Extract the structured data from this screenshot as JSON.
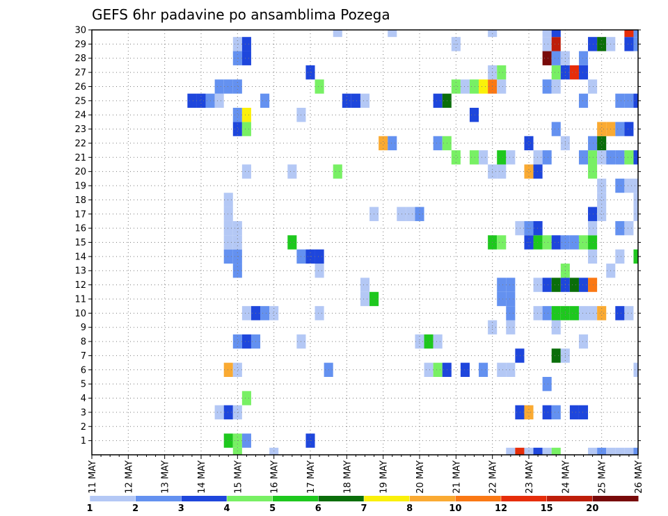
{
  "chart_data": {
    "type": "heatmap",
    "title": "GEFS 6hr padavine po ansamblima Pozega",
    "xlabel": "",
    "ylabel": "",
    "x_ticks": [
      "11 MAY",
      "12 MAY",
      "13 MAY",
      "14 MAY",
      "15 MAY",
      "16 MAY",
      "17 MAY",
      "18 MAY",
      "19 MAY",
      "20 MAY",
      "21 MAY",
      "22 MAY",
      "23 MAY",
      "24 MAY",
      "25 MAY",
      "26 MAY"
    ],
    "x_range": [
      11,
      26
    ],
    "y_ticks": [
      1,
      2,
      3,
      4,
      5,
      6,
      7,
      8,
      9,
      10,
      11,
      12,
      13,
      14,
      15,
      16,
      17,
      18,
      19,
      20,
      21,
      22,
      23,
      24,
      25,
      26,
      27,
      28,
      29,
      30
    ],
    "y_range": [
      0,
      30
    ],
    "grid": true,
    "colorbar": {
      "levels": [
        "1",
        "2",
        "3",
        "4",
        "5",
        "6",
        "7",
        "8",
        "10",
        "12",
        "15",
        "20"
      ],
      "colors": [
        "#b4c8f5",
        "#6491f0",
        "#1e46dc",
        "#78f064",
        "#1ec81e",
        "#0a6e0a",
        "#faf00a",
        "#faaa32",
        "#fa7814",
        "#e62d0a",
        "#be1e0a",
        "#780a0a"
      ]
    },
    "cells": [
      [
        14.75,
        1,
        "#1ec81e"
      ],
      [
        15.0,
        1,
        "#78f064"
      ],
      [
        15.25,
        1,
        "#6491f0"
      ],
      [
        17.0,
        1,
        "#1e46dc"
      ],
      [
        15.0,
        0,
        "#78f064"
      ],
      [
        16.0,
        0,
        "#b4c8f5"
      ],
      [
        22.5,
        0,
        "#b4c8f5"
      ],
      [
        22.75,
        0,
        "#e62d0a"
      ],
      [
        23.0,
        0,
        "#b4c8f5"
      ],
      [
        23.25,
        0,
        "#1e46dc"
      ],
      [
        23.5,
        0,
        "#b4c8f5"
      ],
      [
        23.75,
        0,
        "#78f064"
      ],
      [
        24.75,
        0,
        "#b4c8f5"
      ],
      [
        25.0,
        0,
        "#6491f0"
      ],
      [
        25.25,
        0,
        "#b4c8f5"
      ],
      [
        25.5,
        0,
        "#b4c8f5"
      ],
      [
        25.75,
        0,
        "#b4c8f5"
      ],
      [
        26.0,
        0,
        "#6491f0"
      ],
      [
        14.5,
        3,
        "#b4c8f5"
      ],
      [
        14.75,
        3,
        "#1e46dc"
      ],
      [
        15.0,
        3,
        "#b4c8f5"
      ],
      [
        22.75,
        3,
        "#1e46dc"
      ],
      [
        23.0,
        3,
        "#faaa32"
      ],
      [
        23.5,
        3,
        "#1e46dc"
      ],
      [
        23.75,
        3,
        "#6491f0"
      ],
      [
        24.25,
        3,
        "#1e46dc"
      ],
      [
        24.5,
        3,
        "#1e46dc"
      ],
      [
        15.25,
        4,
        "#78f064"
      ],
      [
        23.5,
        5,
        "#6491f0"
      ],
      [
        14.75,
        6,
        "#faaa32"
      ],
      [
        15.0,
        6,
        "#b4c8f5"
      ],
      [
        17.5,
        6,
        "#6491f0"
      ],
      [
        20.25,
        6,
        "#b4c8f5"
      ],
      [
        20.5,
        6,
        "#78f064"
      ],
      [
        20.75,
        6,
        "#1e46dc"
      ],
      [
        21.25,
        6,
        "#1e46dc"
      ],
      [
        21.75,
        6,
        "#6491f0"
      ],
      [
        22.25,
        6,
        "#b4c8f5"
      ],
      [
        22.5,
        6,
        "#b4c8f5"
      ],
      [
        26.0,
        6,
        "#b4c8f5"
      ],
      [
        22.75,
        7,
        "#1e46dc"
      ],
      [
        23.75,
        7,
        "#0a6e0a"
      ],
      [
        24.0,
        7,
        "#b4c8f5"
      ],
      [
        15.0,
        8,
        "#6491f0"
      ],
      [
        15.25,
        8,
        "#1e46dc"
      ],
      [
        15.5,
        8,
        "#6491f0"
      ],
      [
        16.75,
        8,
        "#b4c8f5"
      ],
      [
        20.0,
        8,
        "#b4c8f5"
      ],
      [
        20.25,
        8,
        "#1ec81e"
      ],
      [
        20.5,
        8,
        "#b4c8f5"
      ],
      [
        24.5,
        8,
        "#b4c8f5"
      ],
      [
        22.0,
        9,
        "#b4c8f5"
      ],
      [
        22.5,
        9,
        "#b4c8f5"
      ],
      [
        23.75,
        9,
        "#b4c8f5"
      ],
      [
        15.25,
        10,
        "#b4c8f5"
      ],
      [
        15.5,
        10,
        "#1e46dc"
      ],
      [
        15.75,
        10,
        "#6491f0"
      ],
      [
        16.0,
        10,
        "#b4c8f5"
      ],
      [
        17.25,
        10,
        "#b4c8f5"
      ],
      [
        22.5,
        10,
        "#6491f0"
      ],
      [
        23.25,
        10,
        "#b4c8f5"
      ],
      [
        23.5,
        10,
        "#6491f0"
      ],
      [
        23.75,
        10,
        "#1ec81e"
      ],
      [
        24.0,
        10,
        "#1ec81e"
      ],
      [
        24.25,
        10,
        "#1ec81e"
      ],
      [
        24.5,
        10,
        "#b4c8f5"
      ],
      [
        24.75,
        10,
        "#b4c8f5"
      ],
      [
        25.0,
        10,
        "#faaa32"
      ],
      [
        25.5,
        10,
        "#1e46dc"
      ],
      [
        25.75,
        10,
        "#b4c8f5"
      ],
      [
        18.5,
        11,
        "#b4c8f5"
      ],
      [
        18.75,
        11,
        "#1ec81e"
      ],
      [
        22.25,
        11,
        "#6491f0"
      ],
      [
        22.5,
        11,
        "#6491f0"
      ],
      [
        18.5,
        12,
        "#b4c8f5"
      ],
      [
        22.25,
        12,
        "#6491f0"
      ],
      [
        22.5,
        12,
        "#6491f0"
      ],
      [
        23.25,
        12,
        "#b4c8f5"
      ],
      [
        23.5,
        12,
        "#1e46dc"
      ],
      [
        23.75,
        12,
        "#0a6e0a"
      ],
      [
        24.0,
        12,
        "#1e46dc"
      ],
      [
        24.25,
        12,
        "#0a6e0a"
      ],
      [
        24.5,
        12,
        "#1e46dc"
      ],
      [
        24.75,
        12,
        "#fa7814"
      ],
      [
        15.0,
        13,
        "#6491f0"
      ],
      [
        17.25,
        13,
        "#b4c8f5"
      ],
      [
        24.0,
        13,
        "#78f064"
      ],
      [
        25.25,
        13,
        "#b4c8f5"
      ],
      [
        14.75,
        14,
        "#6491f0"
      ],
      [
        15.0,
        14,
        "#6491f0"
      ],
      [
        16.75,
        14,
        "#6491f0"
      ],
      [
        17.0,
        14,
        "#1e46dc"
      ],
      [
        17.25,
        14,
        "#1e46dc"
      ],
      [
        24.75,
        14,
        "#b4c8f5"
      ],
      [
        25.5,
        14,
        "#b4c8f5"
      ],
      [
        26.0,
        14,
        "#1ec81e"
      ],
      [
        14.75,
        15,
        "#b4c8f5"
      ],
      [
        15.0,
        15,
        "#b4c8f5"
      ],
      [
        16.5,
        15,
        "#1ec81e"
      ],
      [
        22.0,
        15,
        "#1ec81e"
      ],
      [
        22.25,
        15,
        "#78f064"
      ],
      [
        23.0,
        15,
        "#1e46dc"
      ],
      [
        23.25,
        15,
        "#1ec81e"
      ],
      [
        23.5,
        15,
        "#78f064"
      ],
      [
        23.75,
        15,
        "#1e46dc"
      ],
      [
        24.0,
        15,
        "#6491f0"
      ],
      [
        24.25,
        15,
        "#6491f0"
      ],
      [
        24.5,
        15,
        "#78f064"
      ],
      [
        24.75,
        15,
        "#1ec81e"
      ],
      [
        14.75,
        16,
        "#b4c8f5"
      ],
      [
        15.0,
        16,
        "#b4c8f5"
      ],
      [
        22.75,
        16,
        "#b4c8f5"
      ],
      [
        23.0,
        16,
        "#6491f0"
      ],
      [
        23.25,
        16,
        "#1e46dc"
      ],
      [
        24.75,
        16,
        "#b4c8f5"
      ],
      [
        25.5,
        16,
        "#6491f0"
      ],
      [
        25.75,
        16,
        "#b4c8f5"
      ],
      [
        14.75,
        17,
        "#b4c8f5"
      ],
      [
        18.75,
        17,
        "#b4c8f5"
      ],
      [
        19.5,
        17,
        "#b4c8f5"
      ],
      [
        19.75,
        17,
        "#b4c8f5"
      ],
      [
        20.0,
        17,
        "#6491f0"
      ],
      [
        24.75,
        17,
        "#1e46dc"
      ],
      [
        25.0,
        17,
        "#b4c8f5"
      ],
      [
        26.0,
        17,
        "#b4c8f5"
      ],
      [
        14.75,
        18,
        "#b4c8f5"
      ],
      [
        25.0,
        18,
        "#b4c8f5"
      ],
      [
        26.0,
        18,
        "#b4c8f5"
      ],
      [
        25.0,
        19,
        "#b4c8f5"
      ],
      [
        25.5,
        19,
        "#6491f0"
      ],
      [
        25.75,
        19,
        "#b4c8f5"
      ],
      [
        26.0,
        19,
        "#b4c8f5"
      ],
      [
        15.25,
        20,
        "#b4c8f5"
      ],
      [
        16.5,
        20,
        "#b4c8f5"
      ],
      [
        17.75,
        20,
        "#78f064"
      ],
      [
        22.0,
        20,
        "#b4c8f5"
      ],
      [
        22.25,
        20,
        "#b4c8f5"
      ],
      [
        23.0,
        20,
        "#faaa32"
      ],
      [
        23.25,
        20,
        "#1e46dc"
      ],
      [
        24.75,
        20,
        "#78f064"
      ],
      [
        21.0,
        21,
        "#78f064"
      ],
      [
        21.5,
        21,
        "#78f064"
      ],
      [
        21.75,
        21,
        "#b4c8f5"
      ],
      [
        22.25,
        21,
        "#1ec81e"
      ],
      [
        22.5,
        21,
        "#b4c8f5"
      ],
      [
        23.25,
        21,
        "#b4c8f5"
      ],
      [
        23.5,
        21,
        "#6491f0"
      ],
      [
        24.5,
        21,
        "#6491f0"
      ],
      [
        24.75,
        21,
        "#78f064"
      ],
      [
        25.0,
        21,
        "#b4c8f5"
      ],
      [
        25.25,
        21,
        "#6491f0"
      ],
      [
        25.5,
        21,
        "#6491f0"
      ],
      [
        25.75,
        21,
        "#78f064"
      ],
      [
        26.0,
        21,
        "#1e46dc"
      ],
      [
        19.0,
        22,
        "#faaa32"
      ],
      [
        19.25,
        22,
        "#6491f0"
      ],
      [
        20.5,
        22,
        "#6491f0"
      ],
      [
        20.75,
        22,
        "#78f064"
      ],
      [
        23.0,
        22,
        "#1e46dc"
      ],
      [
        24.0,
        22,
        "#b4c8f5"
      ],
      [
        24.75,
        22,
        "#6491f0"
      ],
      [
        25.0,
        22,
        "#0a6e0a"
      ],
      [
        15.0,
        23,
        "#1e46dc"
      ],
      [
        15.25,
        23,
        "#78f064"
      ],
      [
        23.75,
        23,
        "#6491f0"
      ],
      [
        25.0,
        23,
        "#faaa32"
      ],
      [
        25.25,
        23,
        "#faaa32"
      ],
      [
        25.5,
        23,
        "#6491f0"
      ],
      [
        25.75,
        23,
        "#1e46dc"
      ],
      [
        15.0,
        24,
        "#6491f0"
      ],
      [
        15.25,
        24,
        "#faf00a"
      ],
      [
        16.75,
        24,
        "#b4c8f5"
      ],
      [
        21.5,
        24,
        "#1e46dc"
      ],
      [
        13.75,
        25,
        "#1e46dc"
      ],
      [
        14.0,
        25,
        "#1e46dc"
      ],
      [
        14.25,
        25,
        "#6491f0"
      ],
      [
        14.5,
        25,
        "#b4c8f5"
      ],
      [
        15.75,
        25,
        "#6491f0"
      ],
      [
        18.0,
        25,
        "#1e46dc"
      ],
      [
        18.25,
        25,
        "#1e46dc"
      ],
      [
        18.5,
        25,
        "#b4c8f5"
      ],
      [
        20.5,
        25,
        "#1e46dc"
      ],
      [
        20.75,
        25,
        "#0a6e0a"
      ],
      [
        24.5,
        25,
        "#6491f0"
      ],
      [
        25.5,
        25,
        "#6491f0"
      ],
      [
        25.75,
        25,
        "#6491f0"
      ],
      [
        26.0,
        25,
        "#1e46dc"
      ],
      [
        14.5,
        26,
        "#6491f0"
      ],
      [
        14.75,
        26,
        "#6491f0"
      ],
      [
        15.0,
        26,
        "#6491f0"
      ],
      [
        17.25,
        26,
        "#78f064"
      ],
      [
        21.0,
        26,
        "#78f064"
      ],
      [
        21.25,
        26,
        "#b4c8f5"
      ],
      [
        21.5,
        26,
        "#78f064"
      ],
      [
        21.75,
        26,
        "#faf00a"
      ],
      [
        22.0,
        26,
        "#fa7814"
      ],
      [
        22.25,
        26,
        "#b4c8f5"
      ],
      [
        23.5,
        26,
        "#6491f0"
      ],
      [
        23.75,
        26,
        "#b4c8f5"
      ],
      [
        24.75,
        26,
        "#b4c8f5"
      ],
      [
        17.0,
        27,
        "#1e46dc"
      ],
      [
        22.0,
        27,
        "#b4c8f5"
      ],
      [
        22.25,
        27,
        "#78f064"
      ],
      [
        23.75,
        27,
        "#78f064"
      ],
      [
        24.0,
        27,
        "#1e46dc"
      ],
      [
        24.25,
        27,
        "#e62d0a"
      ],
      [
        24.5,
        27,
        "#1e46dc"
      ],
      [
        15.0,
        28,
        "#6491f0"
      ],
      [
        15.25,
        28,
        "#1e46dc"
      ],
      [
        23.5,
        28,
        "#780a0a"
      ],
      [
        23.75,
        28,
        "#6491f0"
      ],
      [
        24.0,
        28,
        "#b4c8f5"
      ],
      [
        24.5,
        28,
        "#6491f0"
      ],
      [
        15.0,
        29,
        "#b4c8f5"
      ],
      [
        15.25,
        29,
        "#1e46dc"
      ],
      [
        21.0,
        29,
        "#b4c8f5"
      ],
      [
        23.5,
        29,
        "#b4c8f5"
      ],
      [
        23.75,
        29,
        "#be1e0a"
      ],
      [
        24.75,
        29,
        "#1e46dc"
      ],
      [
        25.0,
        29,
        "#0a6e0a"
      ],
      [
        25.25,
        29,
        "#b4c8f5"
      ],
      [
        25.75,
        29,
        "#1e46dc"
      ],
      [
        26.0,
        29,
        "#6491f0"
      ],
      [
        17.75,
        30,
        "#b4c8f5"
      ],
      [
        19.25,
        30,
        "#b4c8f5"
      ],
      [
        22.0,
        30,
        "#b4c8f5"
      ],
      [
        23.5,
        30,
        "#b4c8f5"
      ],
      [
        23.75,
        30,
        "#1e46dc"
      ],
      [
        25.75,
        30,
        "#e62d0a"
      ],
      [
        26.0,
        30,
        "#6491f0"
      ]
    ]
  }
}
